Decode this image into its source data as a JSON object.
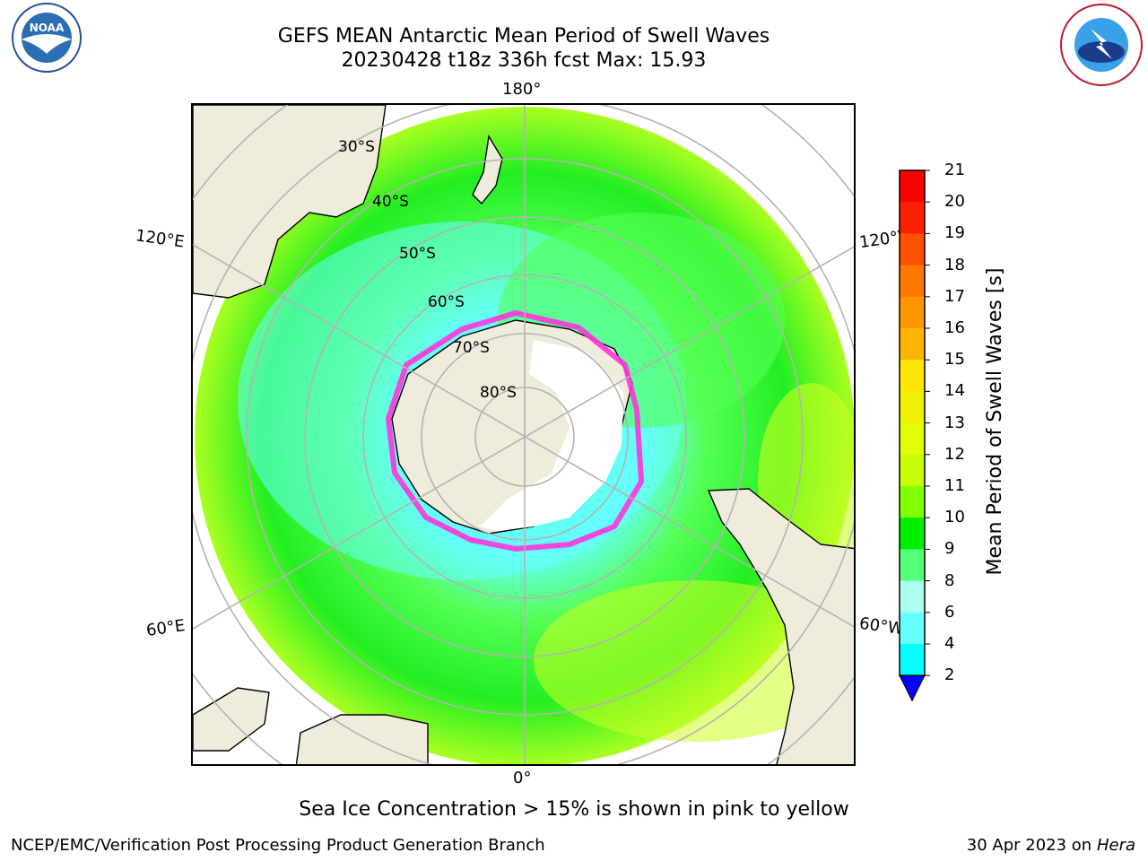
{
  "header": {
    "title_line1": "GEFS MEAN Antarctic Mean Period of Swell Waves",
    "title_line2": "20230428 t18z 336h fcst   Max: 15.93"
  },
  "logos": {
    "left": "NOAA",
    "left_ring": "NATIONAL OCEANIC AND ATMOSPHERIC ADMINISTRATION · U.S. DEPARTMENT OF COMMERCE",
    "right_ring": "NATIONAL WEATHER SERVICE"
  },
  "map": {
    "meridian_labels": {
      "top": "180°",
      "bottom": "0°",
      "left_upper": "120°E",
      "left_lower": "60°E",
      "right_upper": "120°W",
      "right_lower": "60°W"
    },
    "latitude_labels": [
      "30°S",
      "40°S",
      "50°S",
      "60°S",
      "70°S",
      "80°S"
    ],
    "colors": {
      "land": "#efecdc",
      "ice_edge": "#ff33dd",
      "grid": "#b3b3b3"
    }
  },
  "colorbar": {
    "label": "Mean Period of Swell Waves [s]",
    "ticks": [
      "21",
      "20",
      "19",
      "18",
      "17",
      "16",
      "15",
      "14",
      "13",
      "12",
      "11",
      "10",
      "9",
      "8",
      "6",
      "4",
      "2"
    ],
    "colors": [
      "#ff0000",
      "#ff2000",
      "#ff5000",
      "#ff7800",
      "#ff9600",
      "#ffb400",
      "#ffe600",
      "#f0f000",
      "#e0ff00",
      "#c8ff00",
      "#7fff00",
      "#00ee00",
      "#55ff77",
      "#aaffee",
      "#66ffff",
      "#00ffff",
      "#0099ff",
      "#0044ff"
    ]
  },
  "notes": {
    "sea_ice": "Sea Ice Concentration > 15% is shown in pink to yellow",
    "footer_left": "NCEP/EMC/Verification Post Processing Product Generation Branch",
    "footer_right_prefix": "30 Apr 2023 on ",
    "footer_right_machine": "Hera"
  }
}
